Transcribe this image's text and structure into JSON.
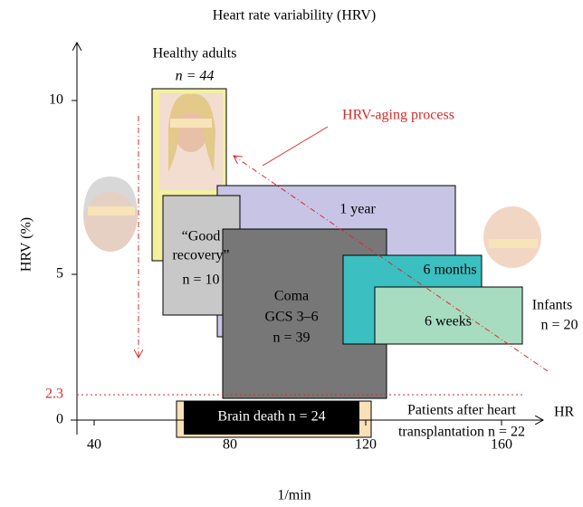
{
  "title": "Heart rate variability (HRV)",
  "axes": {
    "y_label": "HRV (%)",
    "x_label": "1/min",
    "x_end_label": "HR",
    "x_ticks": [
      "40",
      "80",
      "120",
      "160"
    ],
    "y_ticks": [
      "0",
      "5",
      "10"
    ],
    "threshold": "2.3"
  },
  "groups": {
    "healthy": {
      "name": "Healthy adults",
      "n": "n = 44"
    },
    "aging": "HRV-aging process",
    "one_year": "1 year",
    "good_recovery": {
      "lines": [
        "“Good",
        "recovery”"
      ],
      "n": "n = 10"
    },
    "coma": {
      "lines": [
        "Coma",
        "GCS 3–6"
      ],
      "n": "n = 39"
    },
    "six_months": "6 months",
    "six_weeks": "6 weeks",
    "infants": {
      "name": "Infants",
      "n": "n = 20"
    },
    "brain_death": "Brain death n = 24",
    "transplant": [
      "Patients after heart",
      "transplantation n = 22"
    ]
  }
}
